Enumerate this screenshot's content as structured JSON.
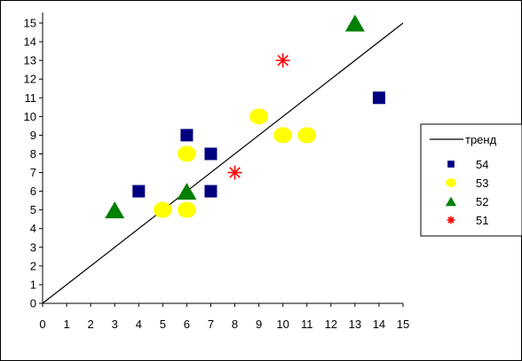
{
  "chart_data": {
    "type": "scatter",
    "title": "",
    "xlabel": "",
    "ylabel": "",
    "xlim": [
      0,
      15
    ],
    "ylim": [
      0,
      15
    ],
    "xticks": [
      "0",
      "1",
      "2",
      "3",
      "4",
      "5",
      "6",
      "7",
      "8",
      "9",
      "10",
      "11",
      "12",
      "13",
      "14",
      "15"
    ],
    "yticks": [
      "0",
      "1",
      "2",
      "3",
      "4",
      "5",
      "6",
      "7",
      "8",
      "9",
      "10",
      "11",
      "12",
      "13",
      "14",
      "15"
    ],
    "grid": false,
    "legend_position": "right",
    "trend": {
      "name": "тренд",
      "x": [
        0,
        15
      ],
      "y": [
        0,
        15
      ],
      "color": "#000000"
    },
    "series": [
      {
        "name": "54",
        "marker": "square",
        "color": "#00007f",
        "points": [
          [
            4,
            6
          ],
          [
            6,
            5
          ],
          [
            6,
            9
          ],
          [
            7,
            6
          ],
          [
            7,
            8
          ],
          [
            14,
            11
          ]
        ]
      },
      {
        "name": "53",
        "marker": "circle",
        "color": "#ffff00",
        "points": [
          [
            5,
            5
          ],
          [
            6,
            5
          ],
          [
            6,
            8
          ],
          [
            9,
            10
          ],
          [
            10,
            9
          ],
          [
            11,
            9
          ]
        ]
      },
      {
        "name": "52",
        "marker": "triangle",
        "color": "#007f00",
        "points": [
          [
            3,
            5
          ],
          [
            6,
            6
          ],
          [
            13,
            15
          ]
        ]
      },
      {
        "name": "51",
        "marker": "star",
        "color": "#ff0000",
        "points": [
          [
            8,
            7
          ],
          [
            10,
            13
          ]
        ]
      }
    ]
  }
}
